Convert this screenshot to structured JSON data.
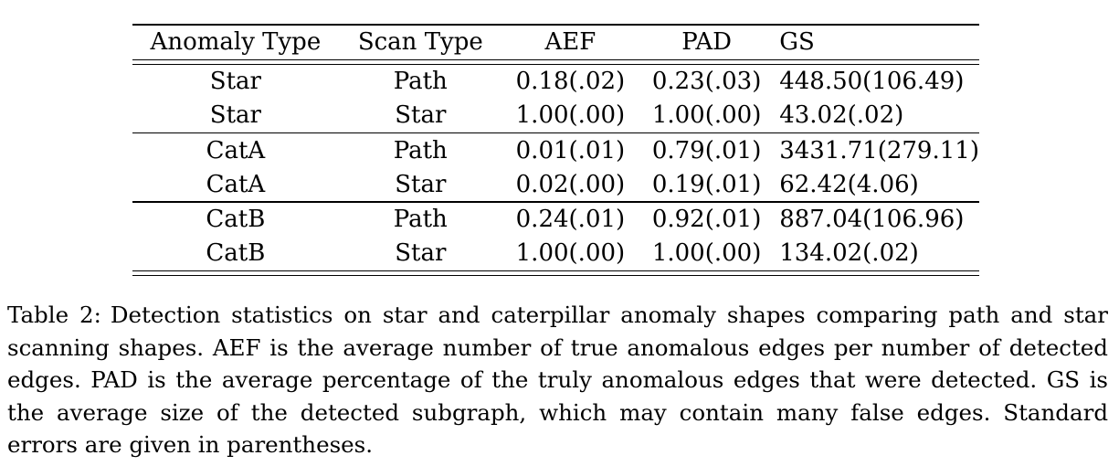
{
  "table": {
    "headers": [
      "Anomaly Type",
      "Scan Type",
      "AEF",
      "PAD",
      "GS"
    ],
    "groups": [
      [
        [
          "Star",
          "Path",
          "0.18(.02)",
          "0.23(.03)",
          "448.50(106.49)"
        ],
        [
          "Star",
          "Star",
          "1.00(.00)",
          "1.00(.00)",
          "43.02(.02)"
        ]
      ],
      [
        [
          "CatA",
          "Path",
          "0.01(.01)",
          "0.79(.01)",
          "3431.71(279.11)"
        ],
        [
          "CatA",
          "Star",
          "0.02(.00)",
          "0.19(.01)",
          "62.42(4.06)"
        ]
      ],
      [
        [
          "CatB",
          "Path",
          "0.24(.01)",
          "0.92(.01)",
          "887.04(106.96)"
        ],
        [
          "CatB",
          "Star",
          "1.00(.00)",
          "1.00(.00)",
          "134.02(.02)"
        ]
      ]
    ]
  },
  "caption": {
    "label": "Table 2:",
    "text": "Detection statistics on star and caterpillar anomaly shapes comparing path and star scanning shapes. AEF is the average number of true anomalous edges per number of detected edges. PAD is the average percentage of the truly anomalous edges that were detected. GS is the average size of the detected subgraph, which may contain many false edges. Standard errors are given in parentheses."
  }
}
